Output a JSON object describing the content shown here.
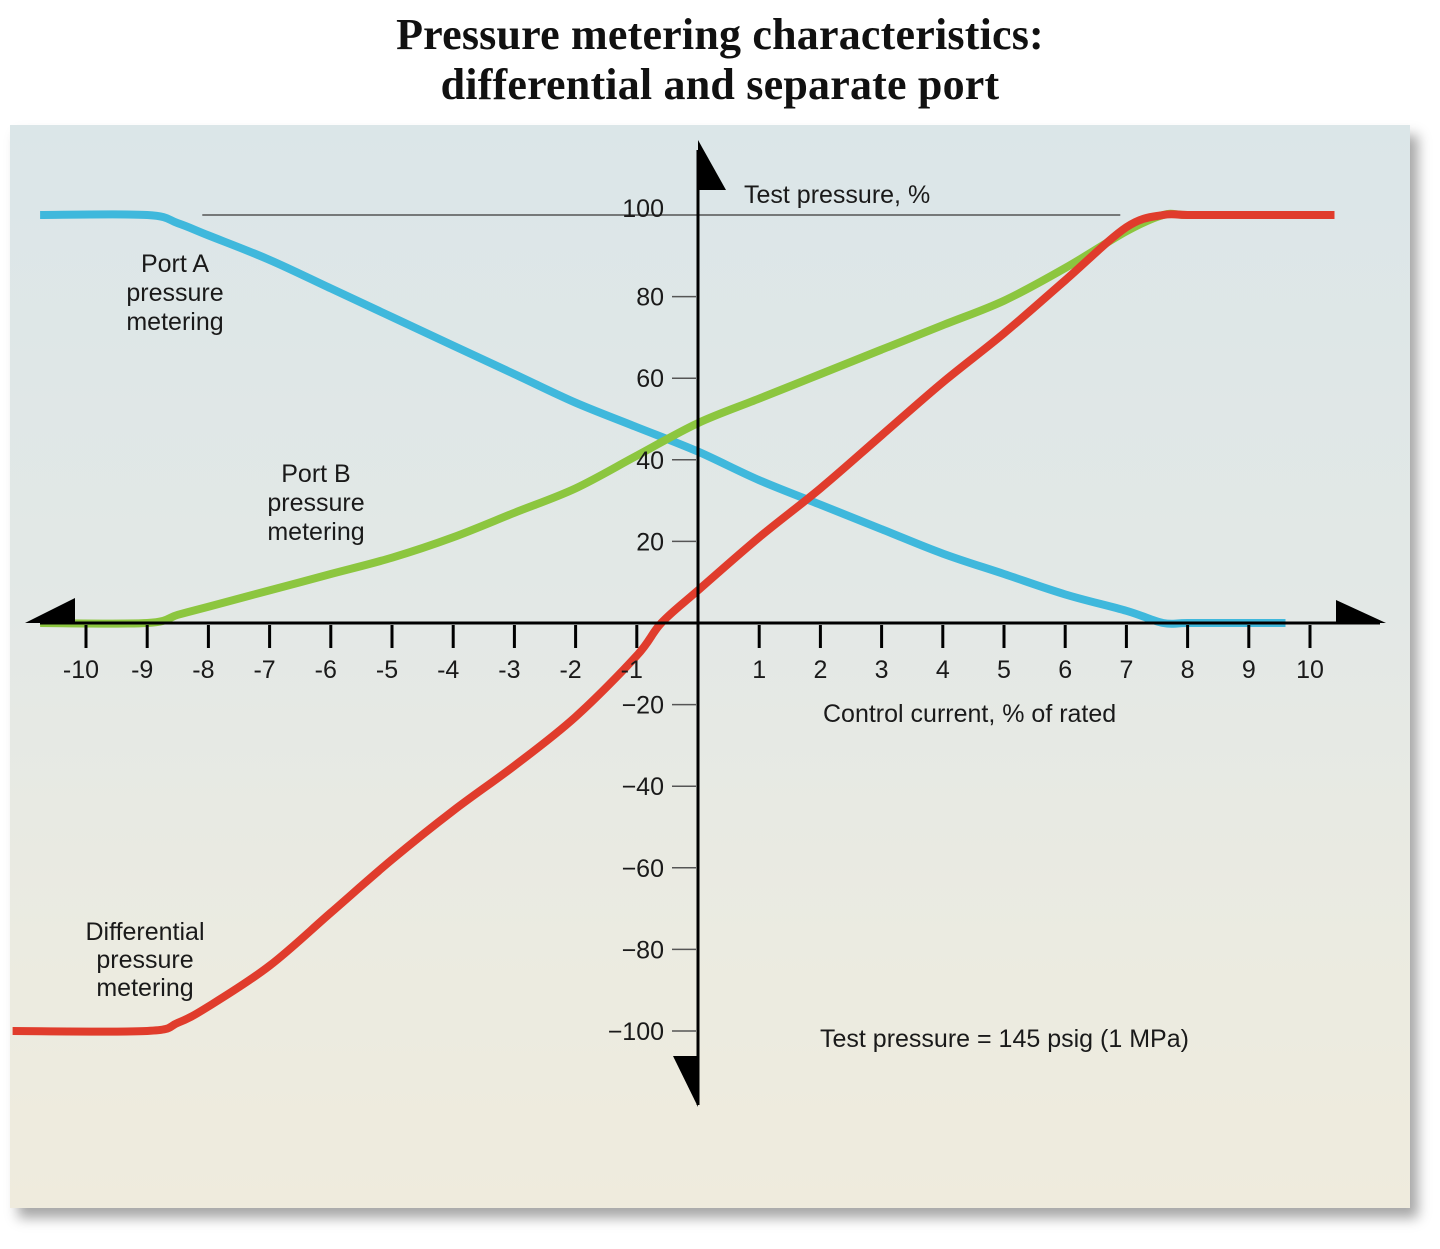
{
  "title": {
    "line1": "Pressure metering characteristics:",
    "line2": "differential and separate port"
  },
  "axes": {
    "y_label": "Test pressure, %",
    "x_label": "Control current, % of rated",
    "note": "Test pressure = 145 psig (1 MPa)"
  },
  "x_ticks": [
    "-10",
    "-9",
    "-8",
    "-7",
    "-6",
    "-5",
    "-4",
    "-3",
    "-2",
    "-1",
    "1",
    "2",
    "3",
    "4",
    "5",
    "6",
    "7",
    "8",
    "9",
    "10"
  ],
  "y_ticks": [
    "100",
    "80",
    "60",
    "40",
    "20",
    "−20",
    "−40",
    "−60",
    "−80",
    "−100"
  ],
  "series_labels": {
    "port_a": [
      "Port A",
      "pressure",
      "metering"
    ],
    "port_b": [
      "Port B",
      "pressure",
      "metering"
    ],
    "differential": [
      "Differential",
      "pressure",
      "metering"
    ]
  },
  "colors": {
    "port_a": "#3fb8dc",
    "port_b": "#8cc63f",
    "differential": "#e03c2c",
    "axis": "#000000",
    "reference_line": "#555555"
  },
  "chart_data": {
    "type": "line",
    "title": "Pressure metering characteristics: differential and separate port",
    "xlabel": "Control current, % of rated",
    "ylabel": "Test pressure, %",
    "xlim": [
      -11,
      11
    ],
    "ylim": [
      -110,
      110
    ],
    "x_ticks": [
      -10,
      -9,
      -8,
      -7,
      -6,
      -5,
      -4,
      -3,
      -2,
      -1,
      1,
      2,
      3,
      4,
      5,
      6,
      7,
      8,
      9,
      10
    ],
    "y_ticks": [
      -100,
      -80,
      -60,
      -40,
      -20,
      20,
      40,
      60,
      80,
      100
    ],
    "reference_line": {
      "y": 100,
      "x_from": -8.1,
      "x_to": 6.9
    },
    "annotation": "Test pressure = 145 psig (1 MPa)",
    "grid": false,
    "legend": "inline labels",
    "series": [
      {
        "name": "Port A pressure metering",
        "color": "#3fb8dc",
        "x": [
          -10.75,
          -9.0,
          -8.5,
          -8.0,
          -7.0,
          -6.0,
          -5.0,
          -4.0,
          -3.0,
          -2.0,
          -1.0,
          0.0,
          1.0,
          2.0,
          3.0,
          4.0,
          5.0,
          6.0,
          7.0,
          7.6,
          8.0,
          9.0,
          9.6
        ],
        "y": [
          100,
          100,
          98,
          95,
          89,
          82,
          75,
          68,
          61,
          54,
          48,
          42,
          35,
          29,
          23,
          17,
          12,
          7,
          3,
          0,
          0,
          0,
          0
        ]
      },
      {
        "name": "Port B pressure metering",
        "color": "#8cc63f",
        "x": [
          -10.75,
          -9.0,
          -8.5,
          -8.0,
          -7.0,
          -6.0,
          -5.0,
          -4.0,
          -3.0,
          -2.0,
          -1.0,
          0.0,
          1.0,
          2.0,
          3.0,
          4.0,
          5.0,
          6.0,
          7.0,
          7.6,
          8.0,
          9.0,
          9.5
        ],
        "y": [
          0,
          0,
          2,
          4,
          8,
          12,
          16,
          21,
          27,
          33,
          41,
          49,
          55,
          61,
          67,
          73,
          79,
          87,
          96,
          100,
          100,
          100,
          100
        ]
      },
      {
        "name": "Differential pressure metering",
        "color": "#e03c2c",
        "x": [
          -11.2,
          -9.0,
          -8.5,
          -8.0,
          -7.0,
          -6.0,
          -5.0,
          -4.0,
          -3.0,
          -2.0,
          -1.0,
          -0.6,
          0.0,
          1.0,
          2.0,
          3.0,
          4.0,
          5.0,
          6.0,
          7.0,
          7.6,
          8.0,
          9.0,
          10.4
        ],
        "y": [
          -100,
          -100,
          -98,
          -94,
          -84,
          -71,
          -58,
          -46,
          -35,
          -23,
          -8,
          0,
          8,
          21,
          33,
          46,
          59,
          71,
          84,
          97,
          100,
          100,
          100,
          100
        ]
      }
    ]
  }
}
